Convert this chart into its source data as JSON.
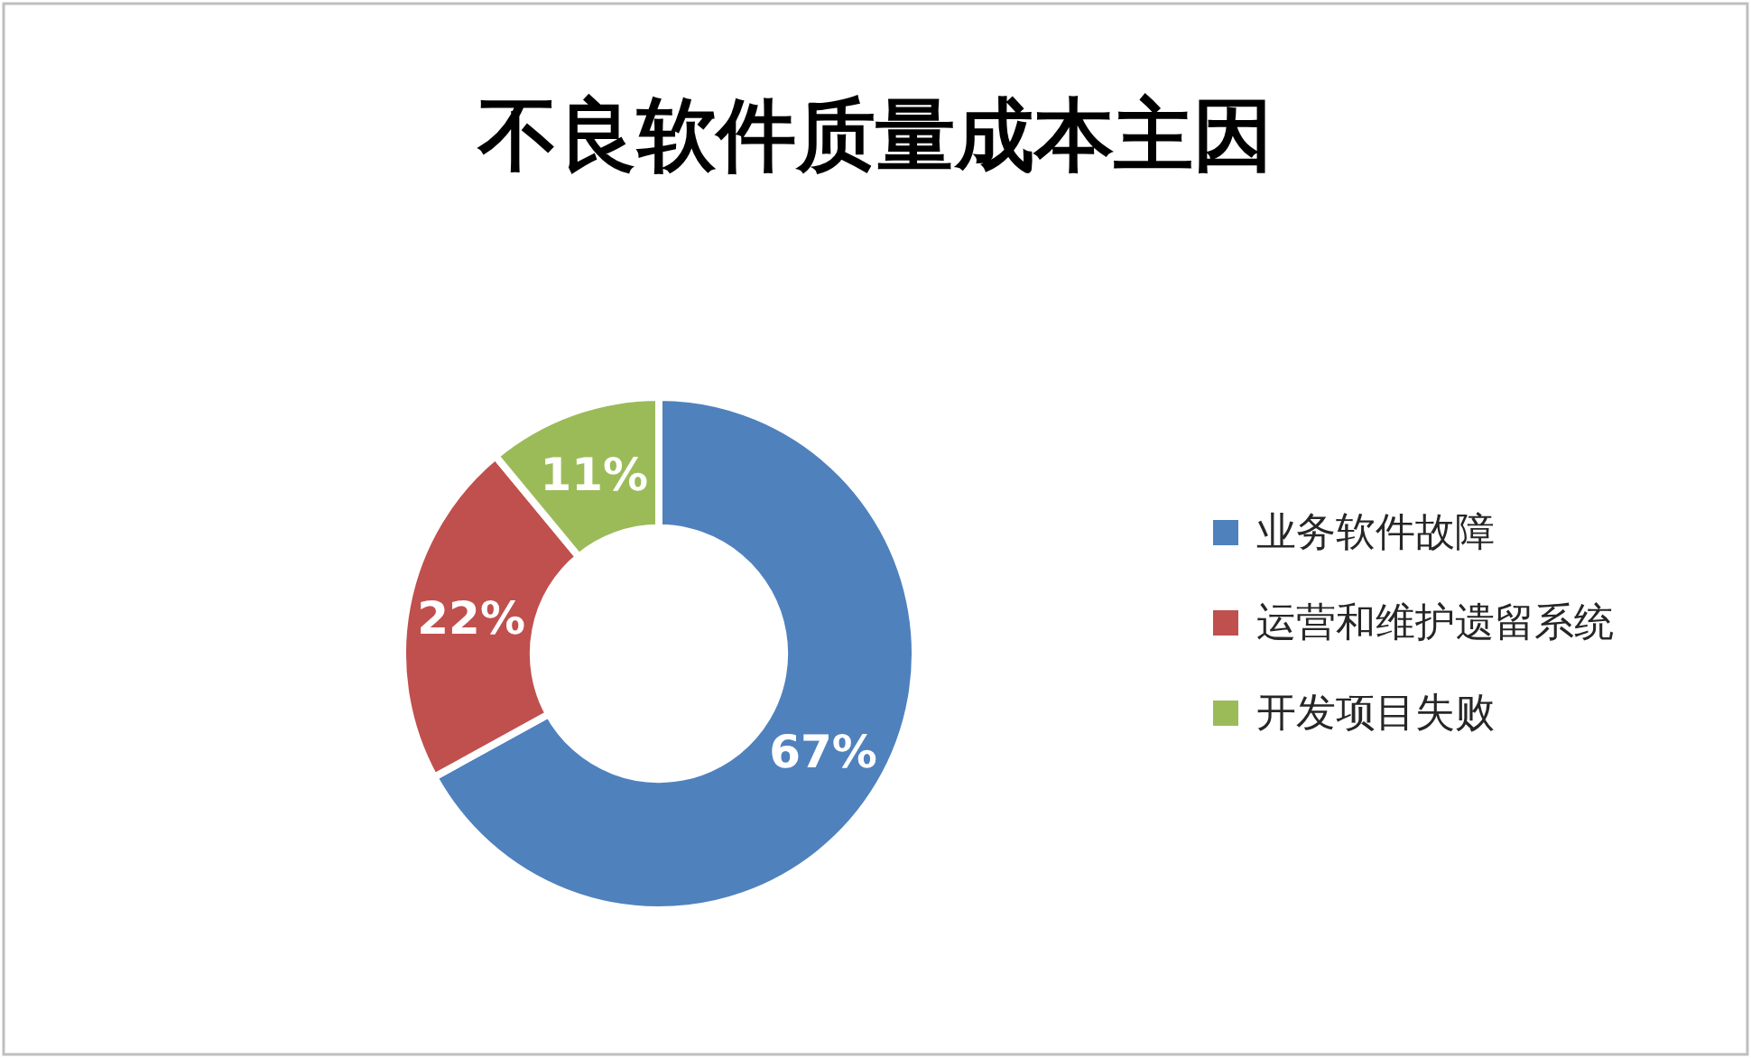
{
  "chart_data": {
    "type": "donut",
    "title": "不良软件质量成本主因",
    "categories": [
      "业务软件故障",
      "运营和维护遗留系统",
      "开发项目失败"
    ],
    "values": [
      67,
      22,
      11
    ],
    "colors": [
      "#4f81bd",
      "#c0504d",
      "#9bbb59"
    ],
    "value_labels": [
      "67%",
      "22%",
      "11%"
    ],
    "legend": "right"
  }
}
